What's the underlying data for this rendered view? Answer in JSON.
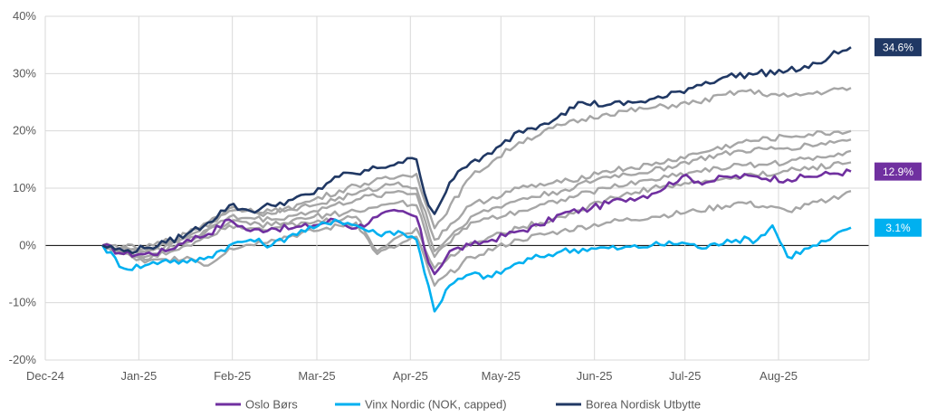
{
  "chart_data": {
    "type": "line",
    "title": "",
    "xlabel": "",
    "ylabel": "",
    "ylim": [
      -20,
      40
    ],
    "yticks": [
      -20,
      -10,
      0,
      10,
      20,
      30,
      40
    ],
    "y_tick_labels": [
      "-20%",
      "-10%",
      "0%",
      "10%",
      "20%",
      "30%",
      "40%"
    ],
    "xlim": [
      "2024-12-01",
      "2025-08-31"
    ],
    "x_ticks": [
      "2024-12-01",
      "2025-01-01",
      "2025-02-01",
      "2025-03-01",
      "2025-04-01",
      "2025-05-01",
      "2025-06-01",
      "2025-07-01",
      "2025-08-01"
    ],
    "x_tick_labels": [
      "Dec-24",
      "Jan-25",
      "Feb-25",
      "Mar-25",
      "Apr-25",
      "May-25",
      "Jun-25",
      "Jul-25",
      "Aug-25"
    ],
    "grid": true,
    "legend_position": "bottom",
    "colors": {
      "oslo": "#7030a0",
      "vinx": "#00b0f0",
      "borea": "#203864",
      "peers": "#a6a6a6"
    },
    "series": [
      {
        "name": "Oslo Børs",
        "color": "#7030a0",
        "end_label": "12.9%",
        "points": [
          [
            "2024-12-20",
            0
          ],
          [
            "2024-12-27",
            -1.5
          ],
          [
            "2025-01-03",
            -1.5
          ],
          [
            "2025-01-10",
            -1
          ],
          [
            "2025-01-17",
            1
          ],
          [
            "2025-01-24",
            2
          ],
          [
            "2025-01-31",
            4.5
          ],
          [
            "2025-02-07",
            2.5
          ],
          [
            "2025-02-14",
            3
          ],
          [
            "2025-02-21",
            3
          ],
          [
            "2025-02-28",
            3.5
          ],
          [
            "2025-03-07",
            4.5
          ],
          [
            "2025-03-14",
            3
          ],
          [
            "2025-03-21",
            5
          ],
          [
            "2025-03-28",
            6
          ],
          [
            "2025-04-03",
            5
          ],
          [
            "2025-04-07",
            -3
          ],
          [
            "2025-04-09",
            -5
          ],
          [
            "2025-04-14",
            -1
          ],
          [
            "2025-04-21",
            0
          ],
          [
            "2025-04-28",
            1
          ],
          [
            "2025-05-07",
            2.5
          ],
          [
            "2025-05-14",
            3.5
          ],
          [
            "2025-05-21",
            5.5
          ],
          [
            "2025-05-31",
            6.5
          ],
          [
            "2025-06-10",
            8
          ],
          [
            "2025-06-20",
            9
          ],
          [
            "2025-06-30",
            12
          ],
          [
            "2025-07-08",
            11
          ],
          [
            "2025-07-15",
            12
          ],
          [
            "2025-07-25",
            12
          ],
          [
            "2025-08-04",
            11.5
          ],
          [
            "2025-08-11",
            12
          ],
          [
            "2025-08-18",
            12.5
          ],
          [
            "2025-08-25",
            12.9
          ]
        ]
      },
      {
        "name": "Vinx Nordic (NOK, capped)",
        "color": "#00b0f0",
        "end_label": "3.1%",
        "points": [
          [
            "2024-12-20",
            0
          ],
          [
            "2024-12-27",
            -4
          ],
          [
            "2025-01-03",
            -3.5
          ],
          [
            "2025-01-10",
            -2.5
          ],
          [
            "2025-01-17",
            -3
          ],
          [
            "2025-01-24",
            -2
          ],
          [
            "2025-01-31",
            0
          ],
          [
            "2025-02-07",
            1
          ],
          [
            "2025-02-14",
            0
          ],
          [
            "2025-02-21",
            2
          ],
          [
            "2025-02-28",
            3
          ],
          [
            "2025-03-07",
            4.5
          ],
          [
            "2025-03-14",
            3.5
          ],
          [
            "2025-03-21",
            2
          ],
          [
            "2025-03-28",
            2.5
          ],
          [
            "2025-04-03",
            1
          ],
          [
            "2025-04-07",
            -7
          ],
          [
            "2025-04-09",
            -11.5
          ],
          [
            "2025-04-14",
            -7
          ],
          [
            "2025-04-21",
            -5
          ],
          [
            "2025-04-28",
            -5.5
          ],
          [
            "2025-05-07",
            -3
          ],
          [
            "2025-05-14",
            -2
          ],
          [
            "2025-05-21",
            -1
          ],
          [
            "2025-05-31",
            -0.5
          ],
          [
            "2025-06-10",
            -0.5
          ],
          [
            "2025-06-20",
            0
          ],
          [
            "2025-06-30",
            0.5
          ],
          [
            "2025-07-08",
            -0.5
          ],
          [
            "2025-07-15",
            1
          ],
          [
            "2025-07-25",
            1
          ],
          [
            "2025-07-30",
            3.5
          ],
          [
            "2025-08-04",
            -2
          ],
          [
            "2025-08-11",
            -0.5
          ],
          [
            "2025-08-18",
            1
          ],
          [
            "2025-08-25",
            3.1
          ]
        ]
      },
      {
        "name": "Borea Nordisk Utbytte",
        "color": "#203864",
        "end_label": "34.6%",
        "points": [
          [
            "2024-12-20",
            0
          ],
          [
            "2024-12-27",
            -1
          ],
          [
            "2025-01-03",
            -0.5
          ],
          [
            "2025-01-10",
            0.5
          ],
          [
            "2025-01-17",
            2
          ],
          [
            "2025-01-24",
            4
          ],
          [
            "2025-01-31",
            7
          ],
          [
            "2025-02-07",
            6
          ],
          [
            "2025-02-14",
            7
          ],
          [
            "2025-02-21",
            8
          ],
          [
            "2025-02-28",
            9
          ],
          [
            "2025-03-07",
            12
          ],
          [
            "2025-03-14",
            12.5
          ],
          [
            "2025-03-21",
            13.5
          ],
          [
            "2025-03-28",
            14.5
          ],
          [
            "2025-04-03",
            15
          ],
          [
            "2025-04-07",
            7
          ],
          [
            "2025-04-09",
            5.5
          ],
          [
            "2025-04-14",
            11
          ],
          [
            "2025-04-21",
            14.5
          ],
          [
            "2025-04-28",
            16
          ],
          [
            "2025-05-07",
            20
          ],
          [
            "2025-05-14",
            21
          ],
          [
            "2025-05-21",
            23
          ],
          [
            "2025-05-28",
            25
          ],
          [
            "2025-06-05",
            24.5
          ],
          [
            "2025-06-15",
            25
          ],
          [
            "2025-06-25",
            26
          ],
          [
            "2025-07-05",
            28
          ],
          [
            "2025-07-15",
            29.5
          ],
          [
            "2025-07-25",
            30
          ],
          [
            "2025-08-04",
            30.5
          ],
          [
            "2025-08-11",
            31
          ],
          [
            "2025-08-18",
            33
          ],
          [
            "2025-08-25",
            34.6
          ]
        ]
      },
      {
        "name": "",
        "color": "#a6a6a6",
        "points": [
          [
            "2024-12-20",
            0
          ],
          [
            "2025-01-03",
            -1
          ],
          [
            "2025-01-17",
            1.5
          ],
          [
            "2025-01-31",
            6
          ],
          [
            "2025-02-14",
            5.5
          ],
          [
            "2025-02-28",
            8
          ],
          [
            "2025-03-14",
            10.5
          ],
          [
            "2025-03-28",
            12
          ],
          [
            "2025-04-03",
            12.5
          ],
          [
            "2025-04-09",
            3
          ],
          [
            "2025-04-21",
            12
          ],
          [
            "2025-05-07",
            18
          ],
          [
            "2025-05-21",
            21
          ],
          [
            "2025-06-05",
            23
          ],
          [
            "2025-06-20",
            24
          ],
          [
            "2025-07-05",
            25
          ],
          [
            "2025-07-20",
            27
          ],
          [
            "2025-08-04",
            26
          ],
          [
            "2025-08-25",
            27.5
          ]
        ]
      },
      {
        "name": "",
        "color": "#a6a6a6",
        "points": [
          [
            "2024-12-20",
            0
          ],
          [
            "2025-01-03",
            -0.5
          ],
          [
            "2025-01-17",
            2
          ],
          [
            "2025-01-31",
            6.5
          ],
          [
            "2025-02-14",
            6
          ],
          [
            "2025-02-28",
            7
          ],
          [
            "2025-03-14",
            9
          ],
          [
            "2025-03-28",
            11
          ],
          [
            "2025-04-03",
            10
          ],
          [
            "2025-04-09",
            1
          ],
          [
            "2025-04-21",
            7
          ],
          [
            "2025-05-07",
            10
          ],
          [
            "2025-05-21",
            11
          ],
          [
            "2025-06-05",
            13
          ],
          [
            "2025-06-20",
            14
          ],
          [
            "2025-07-05",
            16
          ],
          [
            "2025-07-20",
            18
          ],
          [
            "2025-08-04",
            19
          ],
          [
            "2025-08-25",
            20
          ]
        ]
      },
      {
        "name": "",
        "color": "#a6a6a6",
        "points": [
          [
            "2024-12-20",
            0
          ],
          [
            "2025-01-03",
            -2
          ],
          [
            "2025-01-17",
            0.5
          ],
          [
            "2025-01-31",
            5
          ],
          [
            "2025-02-14",
            4.5
          ],
          [
            "2025-02-28",
            6
          ],
          [
            "2025-03-14",
            8
          ],
          [
            "2025-03-28",
            9.5
          ],
          [
            "2025-04-03",
            9
          ],
          [
            "2025-04-09",
            -1
          ],
          [
            "2025-04-21",
            5
          ],
          [
            "2025-05-07",
            8
          ],
          [
            "2025-05-21",
            9.5
          ],
          [
            "2025-06-05",
            12
          ],
          [
            "2025-06-20",
            13
          ],
          [
            "2025-07-05",
            15
          ],
          [
            "2025-07-20",
            16.5
          ],
          [
            "2025-08-04",
            17
          ],
          [
            "2025-08-25",
            18.5
          ]
        ]
      },
      {
        "name": "",
        "color": "#a6a6a6",
        "points": [
          [
            "2024-12-20",
            0
          ],
          [
            "2025-01-03",
            -1.5
          ],
          [
            "2025-01-17",
            1
          ],
          [
            "2025-01-31",
            4
          ],
          [
            "2025-02-14",
            3.5
          ],
          [
            "2025-02-28",
            5
          ],
          [
            "2025-03-14",
            6
          ],
          [
            "2025-03-28",
            7.5
          ],
          [
            "2025-04-03",
            7
          ],
          [
            "2025-04-09",
            -2
          ],
          [
            "2025-04-21",
            4
          ],
          [
            "2025-05-07",
            6
          ],
          [
            "2025-05-21",
            8
          ],
          [
            "2025-06-05",
            10
          ],
          [
            "2025-06-20",
            11.5
          ],
          [
            "2025-07-05",
            13
          ],
          [
            "2025-07-20",
            14
          ],
          [
            "2025-08-04",
            14.5
          ],
          [
            "2025-08-25",
            16.5
          ]
        ]
      },
      {
        "name": "",
        "color": "#a6a6a6",
        "points": [
          [
            "2024-12-20",
            0
          ],
          [
            "2025-01-03",
            -2.5
          ],
          [
            "2025-01-17",
            0
          ],
          [
            "2025-01-31",
            3.5
          ],
          [
            "2025-02-14",
            3
          ],
          [
            "2025-02-28",
            4
          ],
          [
            "2025-03-14",
            5
          ],
          [
            "2025-03-21",
            -1
          ],
          [
            "2025-03-28",
            1.5
          ],
          [
            "2025-04-03",
            3
          ],
          [
            "2025-04-09",
            -4
          ],
          [
            "2025-04-21",
            0.5
          ],
          [
            "2025-05-07",
            3
          ],
          [
            "2025-05-21",
            5
          ],
          [
            "2025-06-05",
            8
          ],
          [
            "2025-06-20",
            10
          ],
          [
            "2025-07-05",
            11
          ],
          [
            "2025-07-20",
            12
          ],
          [
            "2025-08-04",
            13
          ],
          [
            "2025-08-25",
            14.5
          ]
        ]
      },
      {
        "name": "",
        "color": "#a6a6a6",
        "points": [
          [
            "2024-12-20",
            0
          ],
          [
            "2025-01-03",
            -3
          ],
          [
            "2025-01-17",
            -2
          ],
          [
            "2025-01-24",
            -3.5
          ],
          [
            "2025-01-31",
            -0.5
          ],
          [
            "2025-02-14",
            1
          ],
          [
            "2025-02-28",
            2.5
          ],
          [
            "2025-03-14",
            4
          ],
          [
            "2025-03-21",
            -1.5
          ],
          [
            "2025-03-28",
            0
          ],
          [
            "2025-04-03",
            1.5
          ],
          [
            "2025-04-09",
            -7
          ],
          [
            "2025-04-21",
            -2
          ],
          [
            "2025-05-07",
            1
          ],
          [
            "2025-05-21",
            2.5
          ],
          [
            "2025-06-05",
            4
          ],
          [
            "2025-06-20",
            5
          ],
          [
            "2025-07-05",
            6
          ],
          [
            "2025-07-20",
            7.5
          ],
          [
            "2025-08-04",
            6
          ],
          [
            "2025-08-18",
            8
          ],
          [
            "2025-08-25",
            9.5
          ]
        ]
      }
    ],
    "legend": [
      {
        "label": "Oslo Børs",
        "color": "#7030a0"
      },
      {
        "label": "Vinx Nordic (NOK, capped)",
        "color": "#00b0f0"
      },
      {
        "label": "Borea Nordisk Utbytte",
        "color": "#203864"
      }
    ]
  }
}
